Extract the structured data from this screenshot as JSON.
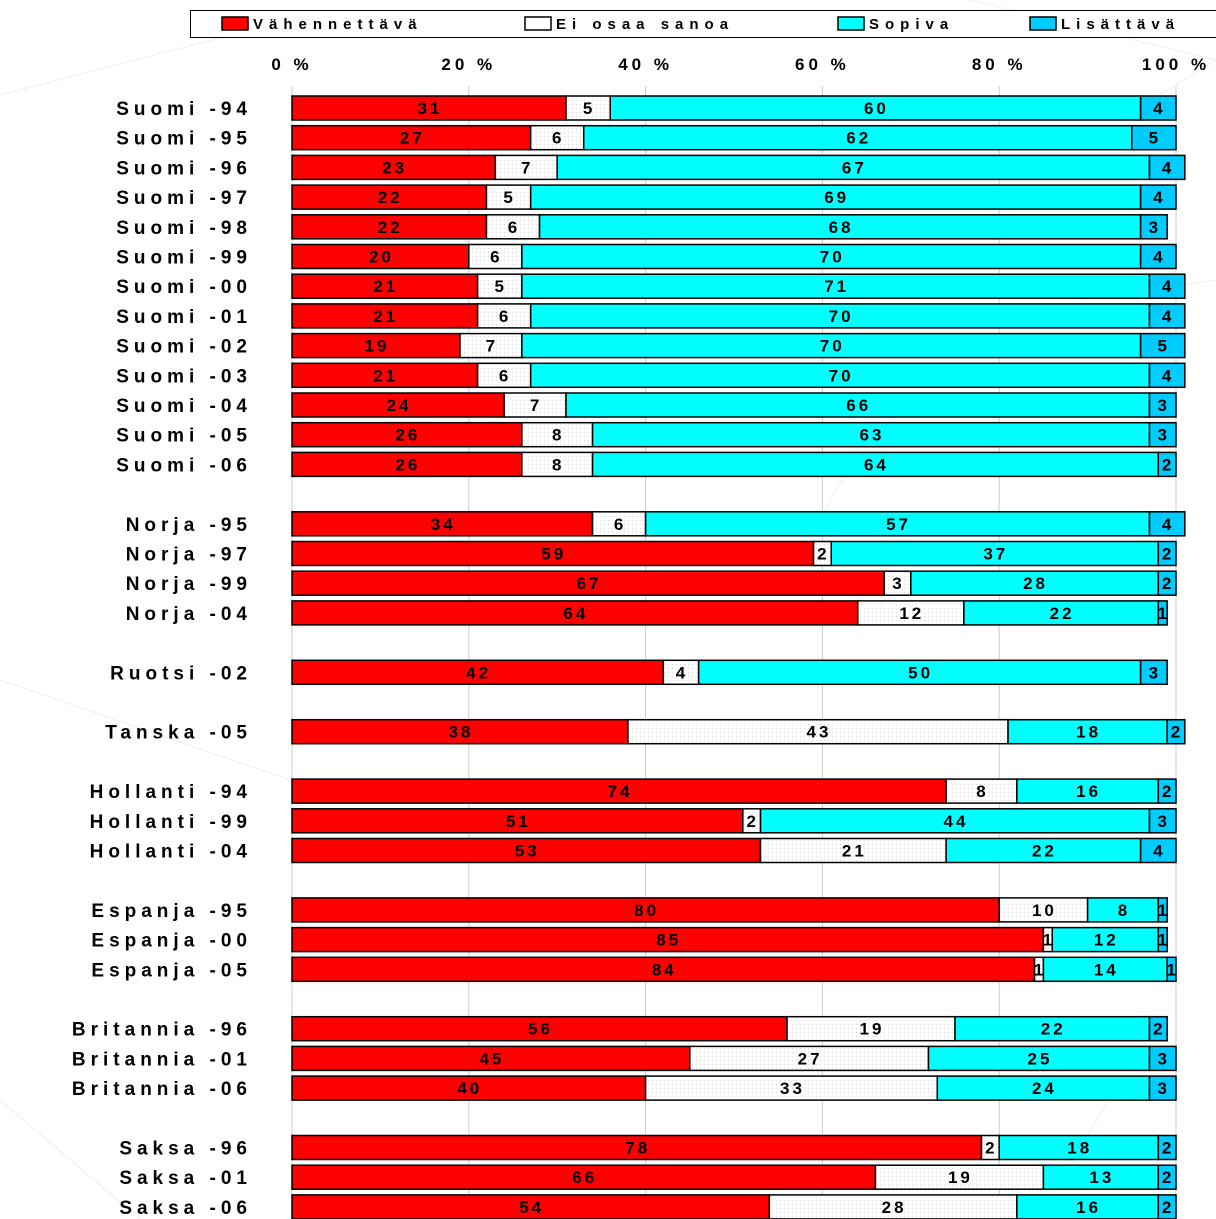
{
  "chart_data": {
    "type": "bar",
    "orientation": "horizontal",
    "stacked": true,
    "percent": true,
    "xlim": [
      0,
      100
    ],
    "x_ticks": [
      "0 %",
      "20 %",
      "40 %",
      "60 %",
      "80 %",
      "100 %"
    ],
    "legend_position": "top",
    "categories": [
      "Suomi -94",
      "Suomi -95",
      "Suomi -96",
      "Suomi -97",
      "Suomi -98",
      "Suomi -99",
      "Suomi -00",
      "Suomi -01",
      "Suomi -02",
      "Suomi -03",
      "Suomi -04",
      "Suomi -05",
      "Suomi -06",
      "Norja -95",
      "Norja -97",
      "Norja -99",
      "Norja -04",
      "Ruotsi -02",
      "Tanska -05",
      "Hollanti -94",
      "Hollanti -99",
      "Hollanti -04",
      "Espanja -95",
      "Espanja -00",
      "Espanja -05",
      "Britannia -96",
      "Britannia -01",
      "Britannia -06",
      "Saksa -96",
      "Saksa -01",
      "Saksa -06"
    ],
    "groups": [
      13,
      4,
      1,
      1,
      3,
      3,
      3,
      3
    ],
    "series": [
      {
        "name": "Vähennettävä",
        "color": "#ff0000",
        "values": [
          31,
          27,
          23,
          22,
          22,
          20,
          21,
          21,
          19,
          21,
          24,
          26,
          26,
          34,
          59,
          67,
          64,
          42,
          38,
          74,
          51,
          53,
          80,
          85,
          84,
          56,
          45,
          40,
          78,
          66,
          54
        ]
      },
      {
        "name": "Ei osaa sanoa",
        "color": "#ffffff",
        "values": [
          5,
          6,
          7,
          5,
          6,
          6,
          5,
          6,
          7,
          6,
          7,
          8,
          8,
          6,
          2,
          3,
          12,
          4,
          43,
          8,
          2,
          21,
          10,
          1,
          1,
          19,
          27,
          33,
          2,
          19,
          28
        ]
      },
      {
        "name": "Sopiva",
        "color": "#00ffff",
        "values": [
          60,
          62,
          67,
          69,
          68,
          70,
          71,
          70,
          70,
          70,
          66,
          63,
          64,
          57,
          37,
          28,
          22,
          50,
          18,
          16,
          44,
          22,
          8,
          12,
          14,
          22,
          25,
          24,
          18,
          13,
          16
        ]
      },
      {
        "name": "Lisättävä",
        "color": "#00ccff",
        "values": [
          4,
          5,
          4,
          4,
          3,
          4,
          4,
          4,
          5,
          4,
          3,
          3,
          2,
          4,
          2,
          2,
          1,
          3,
          2,
          2,
          3,
          4,
          1,
          1,
          1,
          2,
          3,
          3,
          2,
          2,
          2
        ]
      }
    ],
    "legend": [
      "Vähennettävä",
      "Ei osaa sanoa",
      "Sopiva",
      "Lisättävä"
    ]
  }
}
